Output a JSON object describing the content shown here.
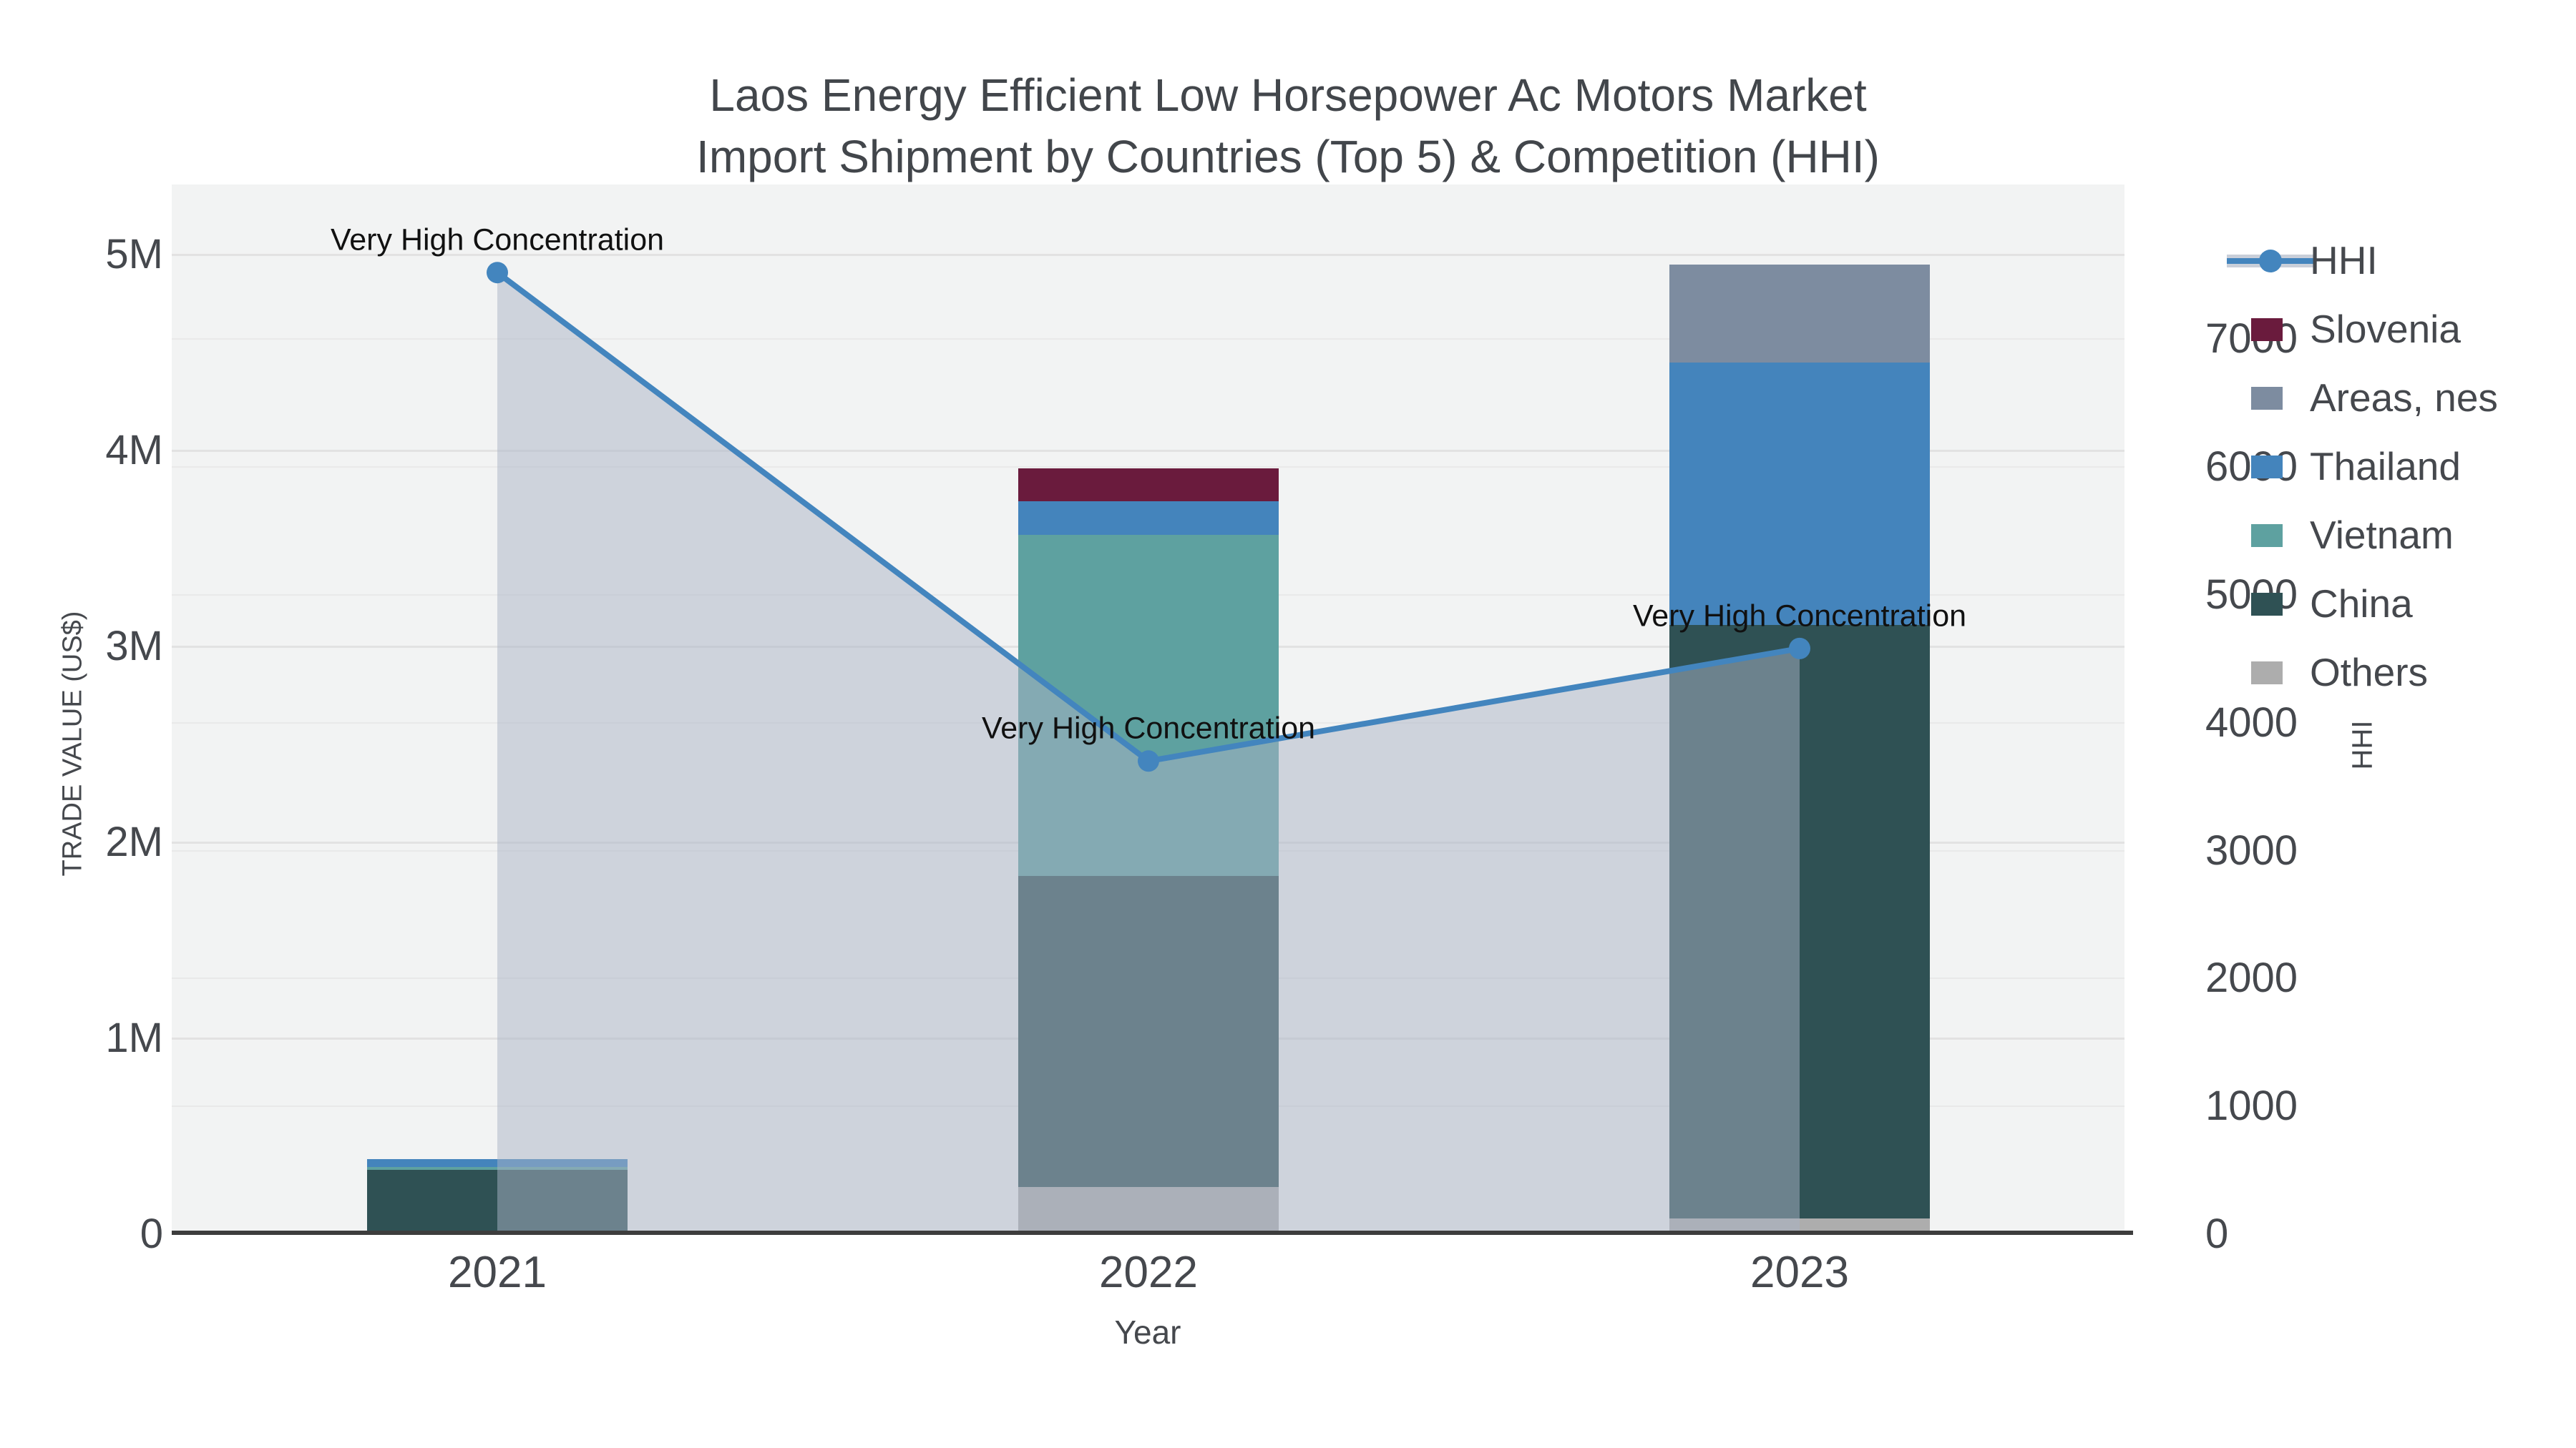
{
  "title": {
    "line1": "Laos Energy Efficient Low Horsepower Ac Motors Market",
    "line2": "Import Shipment by Countries (Top 5) & Competition (HHI)"
  },
  "axes": {
    "x": {
      "title": "Year",
      "ticks": [
        "2021",
        "2022",
        "2023"
      ]
    },
    "left": {
      "title": "TRADE VALUE (US$)",
      "ticks": [
        "0",
        "1M",
        "2M",
        "3M",
        "4M",
        "5M"
      ],
      "max": 5000000
    },
    "right": {
      "title": "HHI",
      "ticks": [
        "0",
        "1000",
        "2000",
        "3000",
        "4000",
        "5000",
        "6000",
        "7000"
      ],
      "max": 7000
    }
  },
  "legend": {
    "items": [
      {
        "label": "HHI",
        "type": "line",
        "color": "#4385BE",
        "band_color": "#c9cfd9"
      },
      {
        "label": "Slovenia",
        "type": "swatch",
        "color": "#6A1B3D"
      },
      {
        "label": "Areas, nes",
        "type": "swatch",
        "color": "#7D8CA0"
      },
      {
        "label": "Thailand",
        "type": "swatch",
        "color": "#4484BC"
      },
      {
        "label": "Vietnam",
        "type": "swatch",
        "color": "#5EA1A0"
      },
      {
        "label": "China",
        "type": "swatch",
        "color": "#2F5154"
      },
      {
        "label": "Others",
        "type": "swatch",
        "color": "#ADADAD"
      }
    ]
  },
  "chart_data": {
    "type": "bar",
    "subtype": "stacked-bars-with-line",
    "categories": [
      "2021",
      "2022",
      "2023"
    ],
    "series": [
      {
        "name": "Others",
        "color": "#ADADAD",
        "values": [
          0,
          240000,
          80000
        ]
      },
      {
        "name": "China",
        "color": "#2F5154",
        "values": [
          330000,
          1590000,
          3030000
        ]
      },
      {
        "name": "Vietnam",
        "color": "#5EA1A0",
        "values": [
          15000,
          1740000,
          0
        ]
      },
      {
        "name": "Thailand",
        "color": "#4484BC",
        "values": [
          40000,
          170000,
          1340000
        ]
      },
      {
        "name": "Areas, nes",
        "color": "#7D8CA0",
        "values": [
          0,
          0,
          500000
        ]
      },
      {
        "name": "Slovenia",
        "color": "#6A1B3D",
        "values": [
          0,
          170000,
          0
        ]
      }
    ],
    "line_series": {
      "name": "HHI",
      "color": "#4385BE",
      "fill_color": "rgba(170,180,197,0.5)",
      "axis": "right",
      "values": [
        7520,
        3700,
        4580
      ],
      "annotations": [
        "Very High Concentration",
        "Very High Concentration",
        "Very High Concentration"
      ]
    },
    "title": "Laos Energy Efficient Low Horsepower Ac Motors Market Import Shipment by Countries (Top 5) & Competition (HHI)",
    "xlabel": "Year",
    "ylabel": "TRADE VALUE (US$)",
    "y2label": "HHI",
    "ylim": [
      0,
      5000000
    ],
    "y2lim": [
      0,
      8200
    ],
    "grid": true,
    "legend_position": "right",
    "plot_bg": "#f2f3f3",
    "grid_color_left": "#e2e2e2",
    "grid_color_right": "#e9e9e9",
    "baseline_color": "#3d3d3d"
  }
}
